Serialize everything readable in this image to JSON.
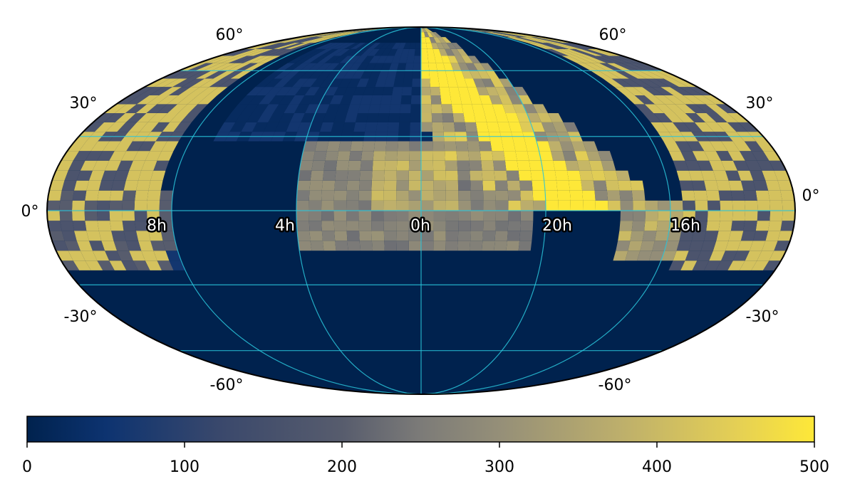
{
  "chart_data": {
    "type": "heatmap",
    "projection": "mollweide",
    "title": "",
    "colormap": "cividis",
    "colors": {
      "low": "#00224e",
      "mid": "#7c7b78",
      "high": "#fee838",
      "grid": "#29c6dc"
    },
    "grid": true,
    "colorbar": {
      "orientation": "horizontal",
      "placement": "bottom",
      "range": [
        0,
        500
      ],
      "ticks": [
        "0",
        "100",
        "200",
        "300",
        "400",
        "500"
      ]
    },
    "lat_ticks": {
      "left": [
        "60°",
        "30°",
        "0°",
        "-30°",
        "-60°"
      ],
      "right": [
        "60°",
        "30°",
        "0°",
        "-30°",
        "-60°"
      ]
    },
    "ra_ticks": [
      "8h",
      "4h",
      "0h",
      "20h",
      "16h"
    ],
    "value_regions": [
      {
        "region": "Galactic plane band (north-east sky)",
        "approx_value": 500
      },
      {
        "region": "Central survey footprint near 0h",
        "approx_value": 280
      },
      {
        "region": "Southern sky below -30°",
        "approx_value": 0
      },
      {
        "region": "Outer northern caps",
        "approx_value": 450
      }
    ]
  }
}
